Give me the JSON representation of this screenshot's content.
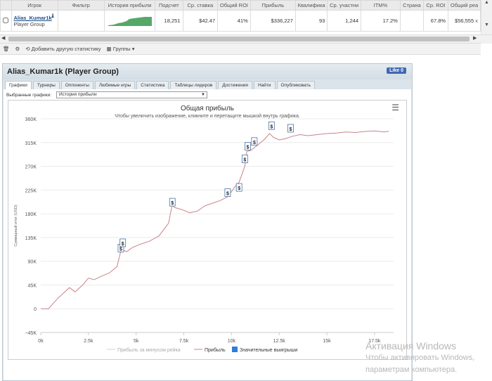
{
  "table": {
    "headers": [
      "Игрок",
      "Фильтр",
      "История прибыли",
      "Подсчет",
      "Ср. ставка",
      "Общий ROI",
      "Прибыль",
      "Квалифика",
      "Ср. участни",
      "ITM%",
      "Страна",
      "Ср. ROI",
      "Общий реа"
    ],
    "row": {
      "player_name": "Alias_Kumar1k",
      "player_group": "Player Group",
      "count": "18,251",
      "avg_stake": "$42.47",
      "total_roi": "41%",
      "profit": "$336,227",
      "qualification": "93",
      "avg_entrants": "1,244",
      "itm": "17.2%",
      "country": "",
      "avg_roi": "67.8%",
      "total_rake": "$56,555",
      "close": "x"
    }
  },
  "toolbar": {
    "add_stats": "Добавить другую статистику",
    "groups": "Группы"
  },
  "panel": {
    "title": "Alias_Kumar1k (Player Group)",
    "like_label": "Like 0",
    "tabs": [
      "Графики",
      "Турниры",
      "Оппоненты",
      "Любимые игры",
      "Статистика",
      "Таблицы лидеров",
      "Достижения",
      "Найти",
      "Опубликовать"
    ],
    "selected_chart_label": "Выбранные графики:",
    "selected_chart_value": "История прибыли"
  },
  "chart_data": {
    "type": "line",
    "title": "Общая прибыль",
    "subtitle": "Чтобы увеличить изображение, кликните и перетащите мышкой внутрь графика.",
    "ylabel": "Суммарный итог (USD)",
    "xlabel": "",
    "ylim": [
      -45000,
      360000
    ],
    "xlim": [
      0,
      18500
    ],
    "y_ticks": [
      "−45K",
      "0",
      "45K",
      "90K",
      "135K",
      "180K",
      "225K",
      "270K",
      "315K",
      "360K"
    ],
    "x_ticks": [
      "0k",
      "2.5k",
      "5k",
      "7.5k",
      "10k",
      "12.5k",
      "15k",
      "17.5k"
    ],
    "x_tick_values": [
      0,
      2500,
      5000,
      7500,
      10000,
      12500,
      15000,
      17500
    ],
    "y_tick_values": [
      -45000,
      0,
      45000,
      90000,
      135000,
      180000,
      225000,
      270000,
      315000,
      360000
    ],
    "grid": true,
    "legend_position": "bottom",
    "colors": {
      "line": "#c9828a",
      "axis_line": "#cccccc",
      "flag_border": "#4572a7",
      "significant": "#2f7ed8"
    },
    "series": [
      {
        "name": "Прибыль",
        "x": [
          0,
          400,
          600,
          900,
          1200,
          1500,
          1800,
          2200,
          2500,
          2800,
          3200,
          3600,
          4000,
          4200,
          4300,
          4500,
          4800,
          5200,
          5700,
          6200,
          6700,
          6900,
          7000,
          7400,
          7800,
          8200,
          8600,
          9000,
          9400,
          9800,
          10200,
          10400,
          10700,
          10800,
          11000,
          11300,
          11700,
          12000,
          12200,
          12500,
          12800,
          13200,
          13600,
          14000,
          14500,
          15000,
          15500,
          16000,
          16500,
          17000,
          17500,
          18000,
          18250
        ],
        "values": [
          0,
          0,
          8000,
          20000,
          30000,
          40000,
          32000,
          45000,
          58000,
          55000,
          62000,
          68000,
          80000,
          110000,
          112000,
          108000,
          116000,
          122000,
          128000,
          138000,
          162000,
          198000,
          192000,
          188000,
          182000,
          185000,
          195000,
          200000,
          205000,
          212000,
          232000,
          240000,
          270000,
          298000,
          300000,
          308000,
          320000,
          332000,
          325000,
          320000,
          322000,
          327000,
          330000,
          328000,
          330000,
          332000,
          333000,
          335000,
          334000,
          336000,
          337000,
          335000,
          336227
        ]
      },
      {
        "name": "Прибыль за минусом рейка",
        "x": [],
        "values": []
      }
    ],
    "significant_wins_label": "Значительные выигрыши",
    "flag_symbol": "$",
    "flags": [
      {
        "x": 4200,
        "y": 113000
      },
      {
        "x": 4300,
        "y": 123000
      },
      {
        "x": 6900,
        "y": 200000
      },
      {
        "x": 9800,
        "y": 218000
      },
      {
        "x": 10400,
        "y": 228000
      },
      {
        "x": 10700,
        "y": 282000
      },
      {
        "x": 10850,
        "y": 306000
      },
      {
        "x": 11200,
        "y": 315000
      },
      {
        "x": 12100,
        "y": 345000
      },
      {
        "x": 13100,
        "y": 340000
      }
    ]
  },
  "watermark": {
    "line1": "Активация Windows",
    "line2": "Чтобы активировать Windows,",
    "line3": "параметрам компьютера."
  }
}
